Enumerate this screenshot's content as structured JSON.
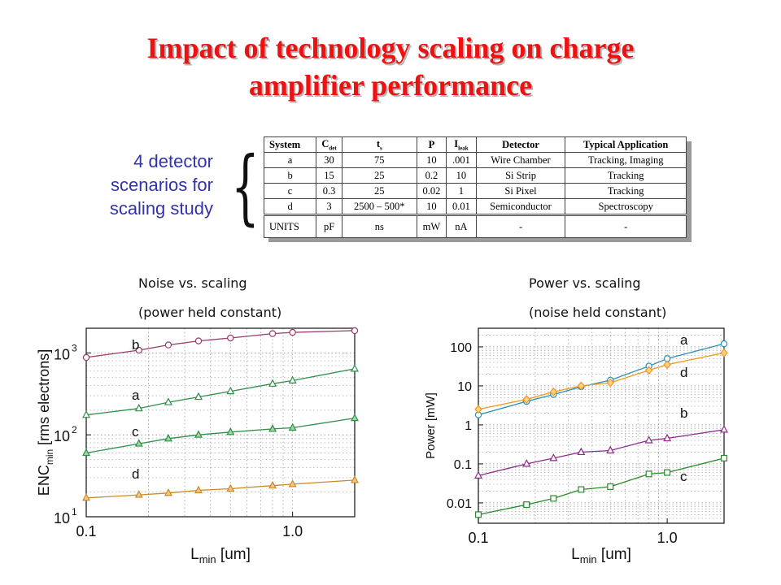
{
  "title_line1": "Impact of technology scaling on charge",
  "title_line2": "amplifier performance",
  "scenarios_text": [
    "4 detector",
    "scenarios for",
    "scaling study"
  ],
  "table": {
    "header": [
      "System",
      "Cdet",
      "ts",
      "P",
      "Ileak",
      "Detector",
      "Typical Application"
    ],
    "rows": [
      [
        "a",
        "30",
        "75",
        "10",
        ".001",
        "Wire Chamber",
        "Tracking, Imaging"
      ],
      [
        "b",
        "15",
        "25",
        "0.2",
        "10",
        "Si Strip",
        "Tracking"
      ],
      [
        "c",
        "0.3",
        "25",
        "0.02",
        "1",
        "Si Pixel",
        "Tracking"
      ],
      [
        "d",
        "3",
        "2500 – 500*",
        "10",
        "0.01",
        "Semiconductor",
        "Spectroscopy"
      ]
    ],
    "units": [
      "UNITS",
      "pF",
      "ns",
      "mW",
      "nA",
      "-",
      "-"
    ]
  },
  "left_caption": [
    "Noise vs. scaling",
    "(power held constant)"
  ],
  "right_caption": [
    "Power vs. scaling",
    "(noise held constant)"
  ],
  "colors": {
    "title": "#ee1111",
    "scenario_text": "#3333aa"
  },
  "chart_data": [
    {
      "type": "line",
      "xscale": "log",
      "yscale": "log",
      "xlim": [
        0.1,
        2.0
      ],
      "ylim": [
        10,
        2000
      ],
      "xticks": [
        {
          "v": 0.1,
          "label": "0.1"
        },
        {
          "v": 1.0,
          "label": "1.0"
        }
      ],
      "yticks": [
        {
          "v": 10,
          "base": "10",
          "exp": "1"
        },
        {
          "v": 100,
          "base": "10",
          "exp": "2"
        },
        {
          "v": 1000,
          "base": "10",
          "exp": "3"
        }
      ],
      "xlabel": {
        "main": "L",
        "sub": "min",
        "rest": " [um]"
      },
      "ylabel": {
        "main": "ENC",
        "sub": "min",
        "rest": " [rms electrons]"
      },
      "grid": true,
      "x": [
        0.1,
        0.18,
        0.25,
        0.35,
        0.5,
        0.8,
        1.0,
        2.0
      ],
      "series": [
        {
          "name": "b",
          "marker": "circle",
          "color": "#9a3a6a",
          "fill": "#ffffff",
          "values": [
            880,
            1080,
            1250,
            1400,
            1520,
            1720,
            1780,
            1870
          ]
        },
        {
          "name": "a",
          "marker": "triangle",
          "color": "#2f8f4a",
          "fill": "#ffffff",
          "values": [
            175,
            210,
            250,
            290,
            340,
            420,
            460,
            640
          ]
        },
        {
          "name": "c",
          "marker": "triangle",
          "color": "#2f8f4a",
          "fill": "#9fd8a0",
          "values": [
            60,
            78,
            90,
            100,
            108,
            118,
            122,
            160
          ]
        },
        {
          "name": "d",
          "marker": "triangle",
          "color": "#c98a2a",
          "fill": "#f4c880",
          "values": [
            17,
            18.5,
            19.5,
            21,
            22,
            24,
            25,
            28
          ]
        }
      ]
    },
    {
      "type": "line",
      "xscale": "log",
      "yscale": "log",
      "xlim": [
        0.1,
        2.0
      ],
      "ylim": [
        0.003,
        300
      ],
      "xticks": [
        {
          "v": 0.1,
          "label": "0.1"
        },
        {
          "v": 1.0,
          "label": "1.0"
        }
      ],
      "yticks": [
        {
          "v": 0.01,
          "label": "0.01"
        },
        {
          "v": 0.1,
          "label": "0.1"
        },
        {
          "v": 1,
          "label": "1"
        },
        {
          "v": 10,
          "label": "10"
        },
        {
          "v": 100,
          "label": "100"
        }
      ],
      "xlabel": {
        "main": "L",
        "sub": "min",
        "rest": " [um]"
      },
      "ylabel": {
        "main": "Power [mW]",
        "sub": "",
        "rest": ""
      },
      "grid": true,
      "x": [
        0.1,
        0.18,
        0.25,
        0.35,
        0.5,
        0.8,
        1.0,
        2.0
      ],
      "series": [
        {
          "name": "a",
          "marker": "circle",
          "color": "#2a8fb0",
          "fill": "#ffffff",
          "values": [
            1.8,
            4.0,
            6.0,
            9.5,
            14,
            32,
            50,
            120
          ]
        },
        {
          "name": "d",
          "marker": "diamond",
          "color": "#f09a20",
          "fill": "#ffd08a",
          "values": [
            2.5,
            4.5,
            7.0,
            10,
            12,
            25,
            35,
            70
          ]
        },
        {
          "name": "b",
          "marker": "triangle",
          "color": "#8a2a8a",
          "fill": "#ffffff",
          "values": [
            0.05,
            0.1,
            0.14,
            0.2,
            0.22,
            0.4,
            0.45,
            0.75
          ]
        },
        {
          "name": "c",
          "marker": "square",
          "color": "#2a8a2a",
          "fill": "#ffffff",
          "values": [
            0.005,
            0.009,
            0.013,
            0.022,
            0.026,
            0.055,
            0.06,
            0.14
          ]
        }
      ]
    }
  ]
}
